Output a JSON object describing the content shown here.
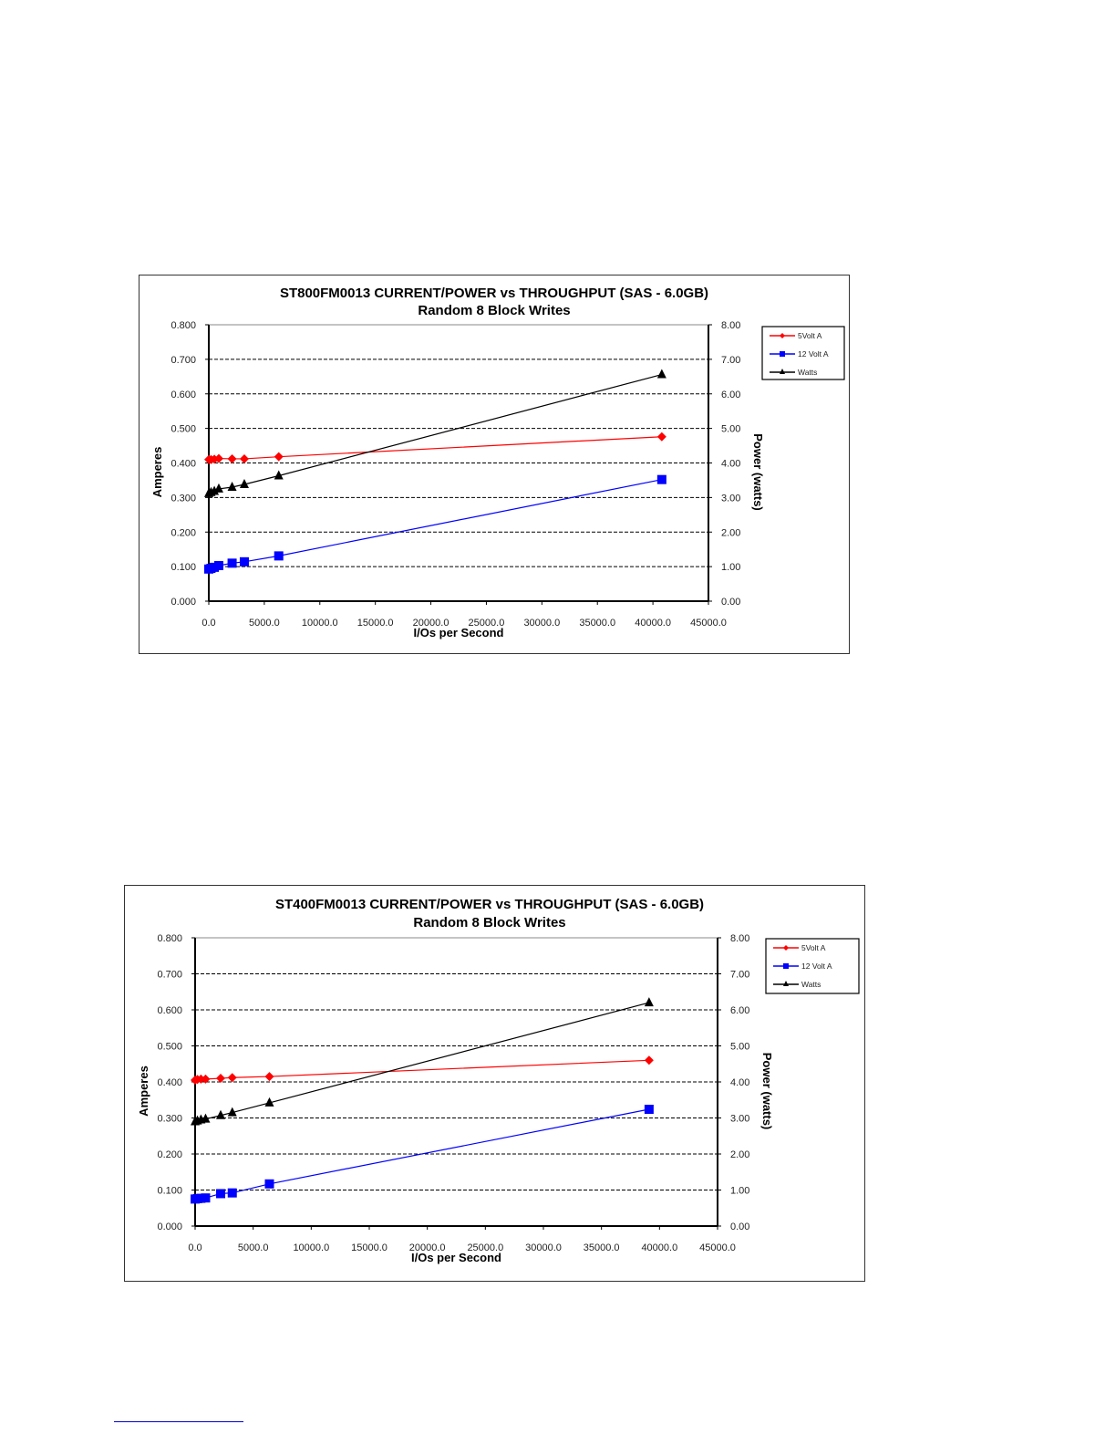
{
  "chart_data": [
    {
      "type": "line",
      "title": "ST800FM0013 CURRENT/POWER vs THROUGHPUT (SAS  - 6.0GB)",
      "subtitle": "Random 8 Block Writes",
      "xlabel": "I/Os per Second",
      "ylabel": "Amperes",
      "y2label": "Power (watts)",
      "xlim": [
        0,
        45000
      ],
      "ylim": [
        0,
        0.8
      ],
      "y2lim": [
        0,
        8
      ],
      "xticks": [
        "0.0",
        "5000.0",
        "10000.0",
        "15000.0",
        "20000.0",
        "25000.0",
        "30000.0",
        "35000.0",
        "40000.0",
        "45000.0"
      ],
      "yticks": [
        "0.000",
        "0.100",
        "0.200",
        "0.300",
        "0.400",
        "0.500",
        "0.600",
        "0.700",
        "0.800"
      ],
      "y2ticks": [
        "0.00",
        "1.00",
        "2.00",
        "3.00",
        "4.00",
        "5.00",
        "6.00",
        "7.00",
        "8.00"
      ],
      "legend_position": "top-right",
      "grid": "dashed horizontal",
      "x": [
        0,
        200,
        500,
        900,
        2100,
        3200,
        6300,
        40800
      ],
      "series": [
        {
          "name": "5Volt A",
          "axis": "left",
          "color": "#ff0000",
          "marker": "diamond",
          "values": [
            0.41,
            0.41,
            0.411,
            0.413,
            0.412,
            0.412,
            0.418,
            0.476
          ]
        },
        {
          "name": "12 Volt A",
          "axis": "left",
          "color": "#0000ff",
          "marker": "square",
          "values": [
            0.093,
            0.095,
            0.098,
            0.103,
            0.11,
            0.114,
            0.131,
            0.352
          ]
        },
        {
          "name": "Watts",
          "axis": "right",
          "color": "#000000",
          "marker": "triangle",
          "values": [
            3.12,
            3.15,
            3.18,
            3.25,
            3.3,
            3.38,
            3.63,
            6.56
          ]
        }
      ]
    },
    {
      "type": "line",
      "title": "ST400FM0013 CURRENT/POWER vs THROUGHPUT (SAS - 6.0GB)",
      "subtitle": "Random 8 Block Writes",
      "xlabel": "I/Os per Second",
      "ylabel": "Amperes",
      "y2label": "Power (watts)",
      "xlim": [
        0,
        45000
      ],
      "ylim": [
        0,
        0.8
      ],
      "y2lim": [
        0,
        8
      ],
      "xticks": [
        "0.0",
        "5000.0",
        "10000.0",
        "15000.0",
        "20000.0",
        "25000.0",
        "30000.0",
        "35000.0",
        "40000.0",
        "45000.0"
      ],
      "yticks": [
        "0.000",
        "0.100",
        "0.200",
        "0.300",
        "0.400",
        "0.500",
        "0.600",
        "0.700",
        "0.800"
      ],
      "y2ticks": [
        "0.00",
        "1.00",
        "2.00",
        "3.00",
        "4.00",
        "5.00",
        "6.00",
        "7.00",
        "8.00"
      ],
      "legend_position": "top-right",
      "grid": "dashed horizontal",
      "x": [
        0,
        200,
        500,
        900,
        2200,
        3200,
        6400,
        39100
      ],
      "series": [
        {
          "name": "5Volt A",
          "axis": "left",
          "color": "#ff0000",
          "marker": "diamond",
          "values": [
            0.405,
            0.407,
            0.408,
            0.408,
            0.41,
            0.412,
            0.415,
            0.46
          ]
        },
        {
          "name": "12 Volt A",
          "axis": "left",
          "color": "#0000ff",
          "marker": "square",
          "values": [
            0.075,
            0.076,
            0.077,
            0.078,
            0.09,
            0.092,
            0.117,
            0.324
          ]
        },
        {
          "name": "Watts",
          "axis": "right",
          "color": "#000000",
          "marker": "triangle",
          "values": [
            2.9,
            2.92,
            2.95,
            2.97,
            3.07,
            3.15,
            3.42,
            6.2
          ]
        }
      ]
    }
  ]
}
